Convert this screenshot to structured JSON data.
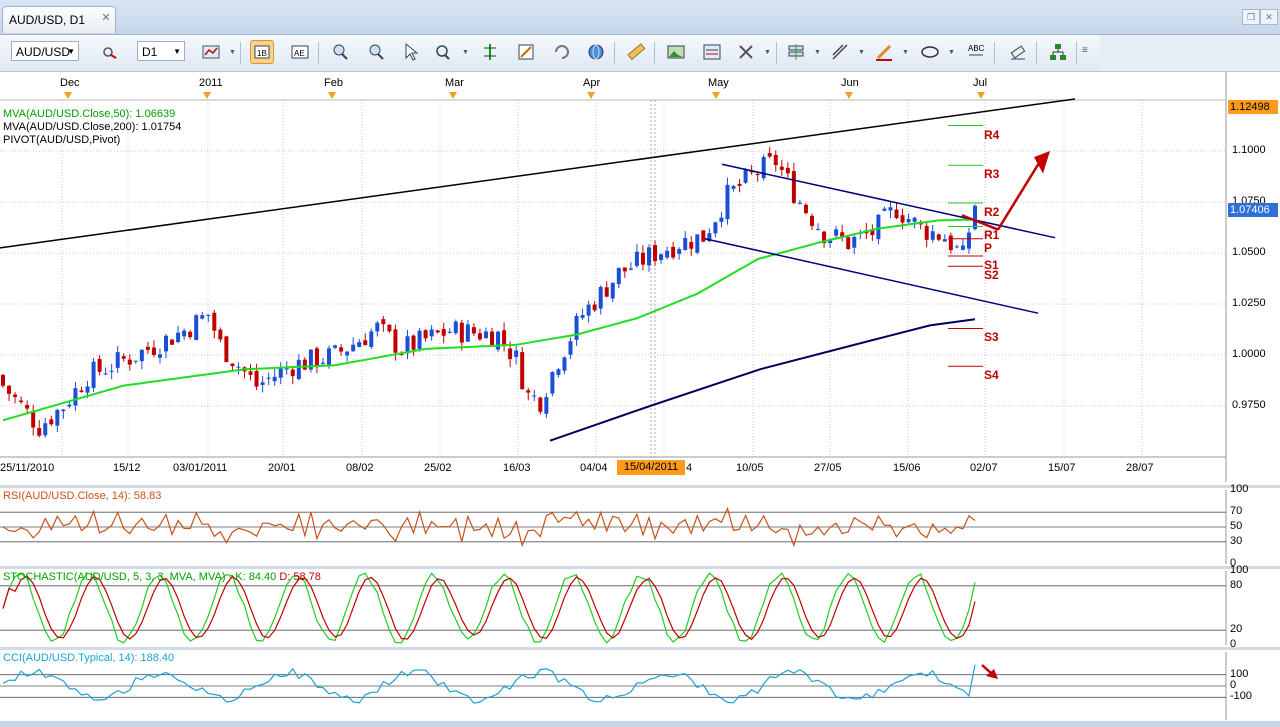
{
  "tab": {
    "title": "AUD/USD, D1",
    "close": "✕"
  },
  "window": {
    "restore": "❐",
    "close": "✕"
  },
  "toolbar": {
    "symbol": "AUD/USD",
    "timeframe": "D1",
    "icons": [
      "chart-type-icon",
      "bar-chart-icon",
      "candle-chart-icon",
      "zoom-icon",
      "move-icon",
      "cursor-icon",
      "crosshair-icon",
      "line-study-icon",
      "bookmark-icon",
      "cycle-icon",
      "globe-icon",
      "ruler-icon",
      "image-icon",
      "template-icon",
      "tools-icon",
      "layers-icon",
      "pencil-icon",
      "color-icon",
      "ellipse-icon",
      "text-icon",
      "eraser-icon",
      "tree-icon",
      "more-icon"
    ]
  },
  "main": {
    "legend": [
      {
        "text": "MVA(AUD/USD.Close,50): 1.06639",
        "color": "#00a000"
      },
      {
        "text": "MVA(AUD/USD.Close,200): 1.01754",
        "color": "#000000"
      },
      {
        "text": "PIVOT(AUD/USD,Pivot)",
        "color": "#000000"
      }
    ],
    "months": [
      "Dec",
      "2011",
      "Feb",
      "Mar",
      "Apr",
      "May",
      "Jun",
      "Jul"
    ],
    "dates": [
      "25/11/2010",
      "15/12",
      "03/01/2011",
      "20/01",
      "08/02",
      "25/02",
      "16/03",
      "04/04",
      "15/04/2011",
      "10/05",
      "27/05",
      "15/06",
      "02/07",
      "15/07",
      "28/07"
    ],
    "date_suffix": "4",
    "y_ticks": [
      "1.1000",
      "1.0750",
      "1.0500",
      "1.0250",
      "1.0000",
      "0.9750"
    ],
    "price_top": "1.12498",
    "price_current": "1.07406",
    "pivots": [
      "R4",
      "R3",
      "R2",
      "R1",
      "P",
      "S1",
      "S2",
      "S3",
      "S4"
    ]
  },
  "chart_data": {
    "type": "line",
    "title": "AUD/USD, D1",
    "ylim": [
      0.95,
      1.125
    ],
    "series": [
      {
        "name": "MVA(AUD/USD.Close,50)",
        "last": 1.06639,
        "color": "#22dd22"
      },
      {
        "name": "MVA(AUD/USD.Close,200)",
        "last": 1.01754,
        "color": "#000060"
      }
    ],
    "pivot_levels": {
      "R4": 1.0875,
      "R3": 1.093,
      "R2": 1.0745,
      "R1": 1.063,
      "P": 1.057,
      "S1": 1.0485,
      "S2": 1.0435,
      "S3": 1.031,
      "S4": 1.013
    },
    "last_price": 1.07406,
    "marker_date": "15/04/2011"
  },
  "rsi": {
    "label": "RSI(AUD/USD.Close, 14): 58.83",
    "ticks": [
      "100",
      "70",
      "50",
      "30",
      "0"
    ],
    "value": 58.83
  },
  "stoch": {
    "label": "STOCHASTIC(AUD/USD, 5, 3, 3, MVA, MVA) - ",
    "k_label": "K: 84.40",
    "d_label": "D: 58.78",
    "ticks": [
      "100",
      "80",
      "20",
      "0"
    ]
  },
  "cci": {
    "label": "CCI(AUD/USD.Typical, 14): 188.40",
    "ticks": [
      "100",
      "0",
      "-100"
    ],
    "value": 188.4
  },
  "colors": {
    "candle_up": "#1a4fd6",
    "candle_down": "#c00000",
    "ma50": "#22dd22",
    "pivot": "#c00000",
    "channel": "#000080"
  }
}
